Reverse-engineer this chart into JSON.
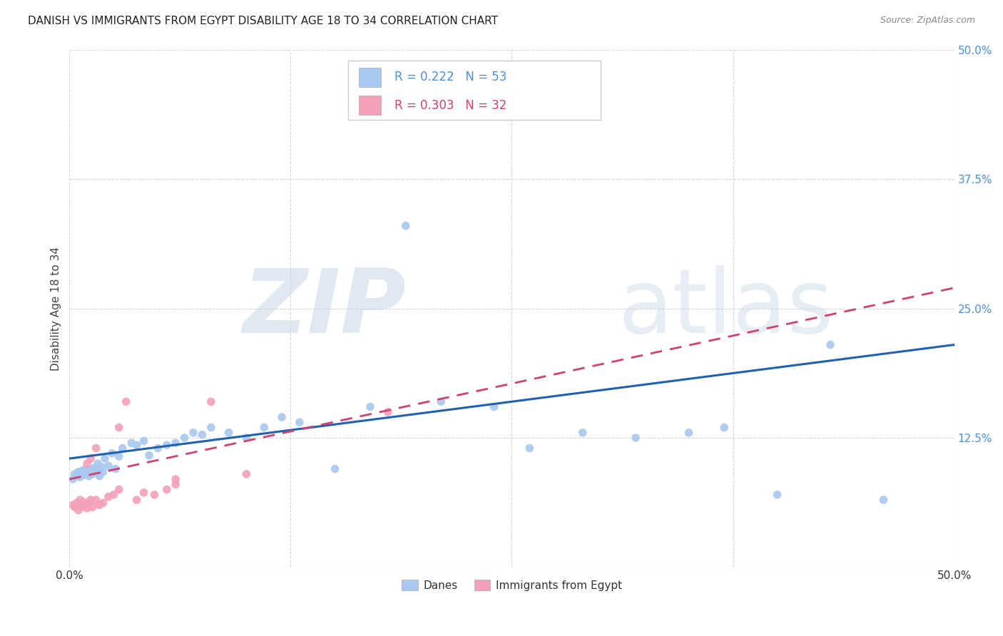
{
  "title": "DANISH VS IMMIGRANTS FROM EGYPT DISABILITY AGE 18 TO 34 CORRELATION CHART",
  "source": "Source: ZipAtlas.com",
  "ylabel": "Disability Age 18 to 34",
  "xlim": [
    0.0,
    0.5
  ],
  "ylim": [
    0.0,
    0.5
  ],
  "background_color": "#ffffff",
  "watermark_text": "ZIPatlas",
  "danes_color": "#a8c8f0",
  "egypt_color": "#f4a0b8",
  "danes_line_color": "#2060b0",
  "egypt_line_color": "#d04070",
  "danes_R": 0.222,
  "danes_N": 53,
  "egypt_R": 0.303,
  "egypt_N": 32,
  "title_color": "#222222",
  "source_color": "#888888",
  "ylabel_color": "#444444",
  "ytick_color": "#4a90d9",
  "xtick_color": "#333333",
  "legend_text_color_danes": "#4a90d9",
  "legend_text_color_egypt": "#d04070",
  "danes_x": [
    0.002,
    0.003,
    0.004,
    0.005,
    0.006,
    0.007,
    0.008,
    0.009,
    0.01,
    0.011,
    0.012,
    0.013,
    0.014,
    0.015,
    0.016,
    0.017,
    0.018,
    0.019,
    0.02,
    0.022,
    0.024,
    0.026,
    0.028,
    0.03,
    0.035,
    0.038,
    0.042,
    0.045,
    0.05,
    0.055,
    0.06,
    0.065,
    0.07,
    0.075,
    0.08,
    0.09,
    0.1,
    0.11,
    0.12,
    0.13,
    0.15,
    0.17,
    0.19,
    0.21,
    0.24,
    0.26,
    0.29,
    0.32,
    0.35,
    0.37,
    0.4,
    0.43,
    0.46
  ],
  "danes_y": [
    0.085,
    0.09,
    0.088,
    0.092,
    0.087,
    0.093,
    0.089,
    0.095,
    0.091,
    0.088,
    0.094,
    0.09,
    0.096,
    0.093,
    0.1,
    0.088,
    0.097,
    0.092,
    0.105,
    0.098,
    0.11,
    0.095,
    0.107,
    0.115,
    0.12,
    0.118,
    0.122,
    0.108,
    0.115,
    0.118,
    0.12,
    0.125,
    0.13,
    0.128,
    0.135,
    0.13,
    0.125,
    0.135,
    0.145,
    0.14,
    0.095,
    0.155,
    0.33,
    0.16,
    0.155,
    0.115,
    0.13,
    0.125,
    0.13,
    0.135,
    0.07,
    0.215,
    0.065
  ],
  "egypt_x": [
    0.002,
    0.003,
    0.004,
    0.005,
    0.006,
    0.007,
    0.008,
    0.009,
    0.01,
    0.011,
    0.012,
    0.013,
    0.015,
    0.017,
    0.019,
    0.022,
    0.025,
    0.028,
    0.032,
    0.038,
    0.042,
    0.048,
    0.055,
    0.06,
    0.028,
    0.015,
    0.01,
    0.012,
    0.06,
    0.08,
    0.1,
    0.18
  ],
  "egypt_y": [
    0.06,
    0.058,
    0.062,
    0.055,
    0.065,
    0.058,
    0.063,
    0.06,
    0.057,
    0.062,
    0.065,
    0.058,
    0.065,
    0.06,
    0.062,
    0.068,
    0.07,
    0.075,
    0.16,
    0.065,
    0.072,
    0.07,
    0.075,
    0.08,
    0.135,
    0.115,
    0.1,
    0.105,
    0.085,
    0.16,
    0.09,
    0.15
  ]
}
